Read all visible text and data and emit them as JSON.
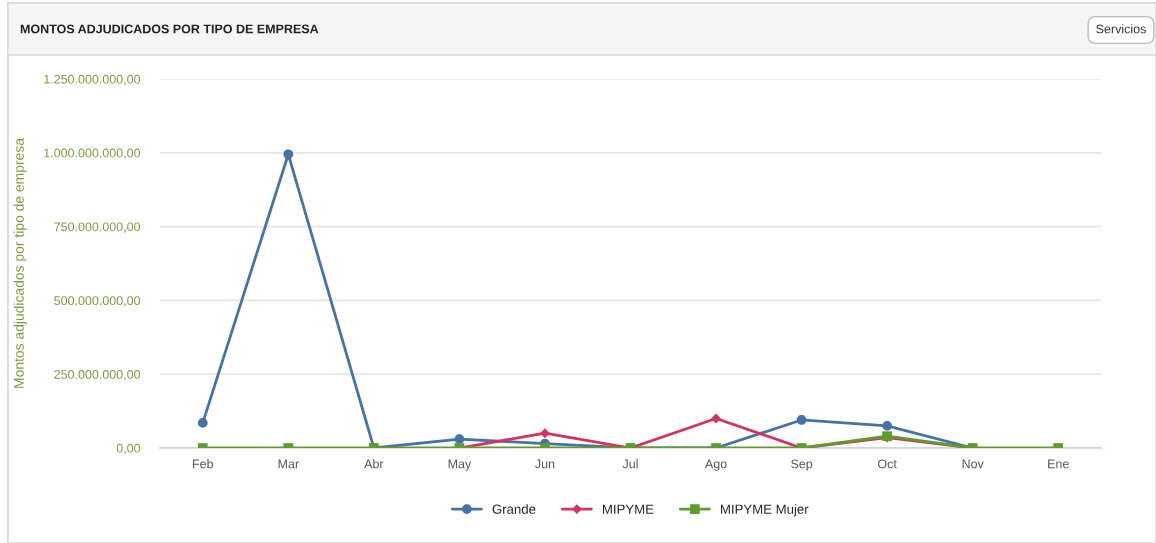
{
  "chart_data": {
    "type": "line",
    "title": "MONTOS ADJUDICADOS POR TIPO DE EMPRESA",
    "ylabel": "Montos adjudicados por tipo de empresa",
    "annotations": [
      "Servicios"
    ],
    "categories": [
      "Feb",
      "Mar",
      "Abr",
      "May",
      "Jun",
      "Jul",
      "Ago",
      "Sep",
      "Oct",
      "Nov",
      "Ene"
    ],
    "series": [
      {
        "name": "Grande",
        "color": "#4572a7",
        "marker": "circle",
        "values": [
          85000000,
          995000000,
          0,
          30000000,
          15000000,
          0,
          0,
          95000000,
          75000000,
          0,
          null
        ]
      },
      {
        "name": "MIPYME",
        "color": "#d6325e",
        "marker": "diamond",
        "values": [
          null,
          null,
          null,
          0,
          50000000,
          0,
          100000000,
          0,
          35000000,
          0,
          null
        ]
      },
      {
        "name": "MIPYME Mujer",
        "color": "#5e9c2c",
        "marker": "square",
        "values": [
          0,
          0,
          0,
          0,
          0,
          0,
          0,
          0,
          40000000,
          0,
          0
        ]
      }
    ],
    "ylim": [
      0,
      1250000000
    ],
    "yticks": [
      {
        "value": 0,
        "label": "0,00"
      },
      {
        "value": 250000000,
        "label": "250.000.000,00"
      },
      {
        "value": 500000000,
        "label": "500.000.000,00"
      },
      {
        "value": 750000000,
        "label": "750.000.000,00"
      },
      {
        "value": 1000000000,
        "label": "1.000.000.000,00"
      },
      {
        "value": 1250000000,
        "label": "1.250.000.000,00"
      }
    ],
    "grid": "y",
    "legend": "bottom",
    "line_style": "solid"
  }
}
